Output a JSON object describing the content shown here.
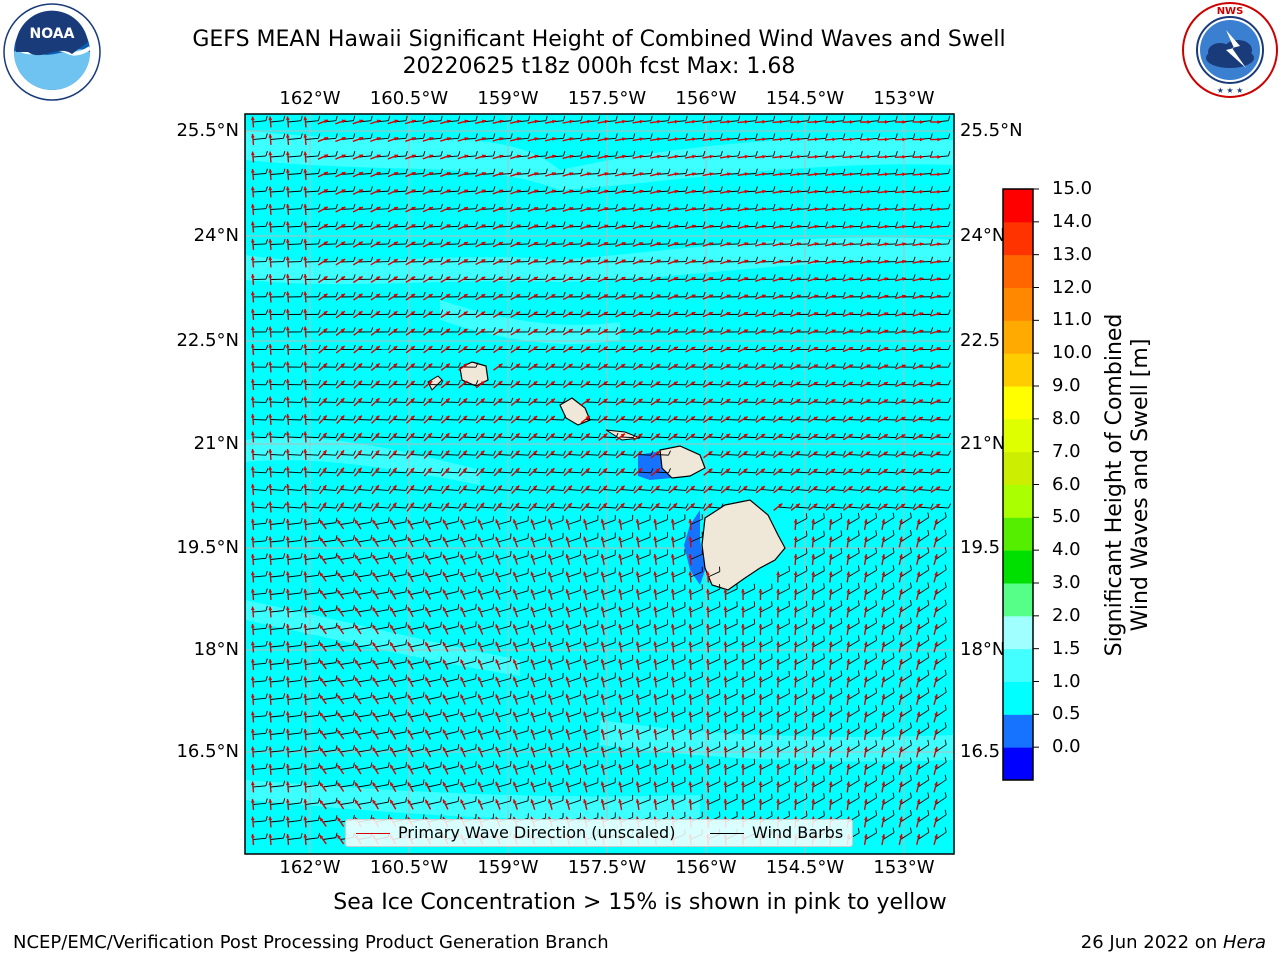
{
  "title": {
    "line1": "GEFS MEAN Hawaii Significant Height of Combined Wind Waves and Swell",
    "line2": "20220625 t18z 000h fcst   Max: 1.68"
  },
  "map": {
    "lon_labels": [
      "162°W",
      "160.5°W",
      "159°W",
      "157.5°W",
      "156°W",
      "154.5°W",
      "153°W"
    ],
    "lat_labels": [
      "25.5°N",
      "24°N",
      "22.5°N",
      "21°N",
      "19.5°N",
      "18°N",
      "16.5°N"
    ],
    "lat_labels_right": [
      "25.5°N",
      "24°N",
      "22.5",
      "21°N",
      "19.5",
      "18°N",
      "16.5"
    ],
    "ocean_color": "#00ffff",
    "band_color": "#44ffff",
    "wave_arrow_color": "#dd0000",
    "barb_color": "#000000"
  },
  "colorbar": {
    "title_line1": "Significant Height of Combined",
    "title_line2": "Wind Waves and Swell [m]",
    "ticks": [
      "15.0",
      "14.0",
      "13.0",
      "12.0",
      "11.0",
      "10.0",
      "9.0",
      "8.0",
      "7.0",
      "6.0",
      "5.0",
      "4.0",
      "3.0",
      "2.0",
      "1.5",
      "1.0",
      "0.5",
      "0.0"
    ],
    "colors": [
      "#0000ff",
      "#1573ff",
      "#00ffff",
      "#44ffff",
      "#a0ffff",
      "#55ff88",
      "#00e000",
      "#55ee00",
      "#aaff00",
      "#ccee00",
      "#ddff00",
      "#ffff00",
      "#ffcc00",
      "#ffaa00",
      "#ff8800",
      "#ff6600",
      "#ff3300",
      "#ff0000"
    ]
  },
  "legend": {
    "wave_label": "Primary Wave Direction (unscaled)",
    "barb_label": "Wind Barbs"
  },
  "sea_ice_note": "Sea Ice Concentration > 15% is shown in pink to yellow",
  "footer": {
    "left": "NCEP/EMC/Verification Post Processing Product Generation Branch",
    "right_date": "26 Jun 2022 on ",
    "right_machine": "Hera"
  },
  "logos": {
    "left": "NOAA",
    "right": "NATIONAL WEATHER SERVICE"
  }
}
